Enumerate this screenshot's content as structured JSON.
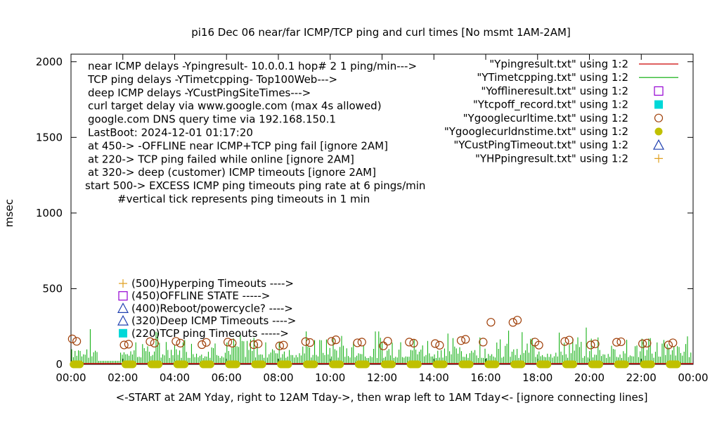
{
  "chart_data": {
    "type": "scatter",
    "title": "pi16 Dec 06  near/far ICMP/TCP ping and curl times [No msmt 1AM-2AM]",
    "xlabel": "<-START at 2AM Yday, right to 12AM Tday->, then wrap left to 1AM Tday<- [ignore connecting lines]",
    "ylabel": "msec",
    "xlim": [
      0,
      24
    ],
    "ylim": [
      0,
      2050
    ],
    "x_ticks": [
      "00:00",
      "02:00",
      "04:00",
      "06:00",
      "08:00",
      "10:00",
      "12:00",
      "14:00",
      "16:00",
      "18:00",
      "20:00",
      "22:00",
      "00:00"
    ],
    "y_ticks": [
      0,
      500,
      1000,
      1500,
      2000
    ],
    "info_lines": [
      "near ICMP delays -Ypingresult- 10.0.0.1 hop# 2 1 ping/min--->",
      "TCP ping delays -YTimetcpping- Top100Web--->",
      "deep ICMP delays -YCustPingSiteTimes--->",
      "curl target delay via www.google.com (max 4s allowed)",
      "google.com DNS query time via 192.168.150.1",
      "LastBoot: 2024-12-01 01:17:20",
      "at 450-> -OFFLINE near ICMP+TCP ping fail [ignore 2AM]",
      "at 220-> TCP ping failed while online [ignore 2AM]",
      "at 320-> deep (customer) ICMP timeouts [ignore 2AM]",
      "start 500-> EXCESS ICMP ping timeouts ping rate at 6 pings/min",
      "#vertical tick represents ping timeouts in 1 min"
    ],
    "legend": [
      {
        "label": "\"Ypingresult.txt\" using 1:2",
        "color": "#cc0000",
        "marker": "line"
      },
      {
        "label": "\"YTimetcpping.txt\" using 1:2",
        "color": "#00aa00",
        "marker": "line"
      },
      {
        "label": "\"Yofflineresult.txt\" using 1:2",
        "color": "#9400d3",
        "marker": "open-square"
      },
      {
        "label": "\"Ytcpoff_record.txt\" using 1:2",
        "color": "#00d8d8",
        "marker": "filled-square"
      },
      {
        "label": "\"Ygooglecurltime.txt\" using 1:2",
        "color": "#a0400a",
        "marker": "open-circle"
      },
      {
        "label": "\"Ygooglecurldnstime.txt\" using 1:2",
        "color": "#c0c000",
        "marker": "filled-circle"
      },
      {
        "label": "\"YCustPingTimeout.txt\" using 1:2",
        "color": "#2040b0",
        "marker": "open-triangle"
      },
      {
        "label": "\"YHPpingresult.txt\" using 1:2",
        "color": "#e0a020",
        "marker": "plus"
      }
    ],
    "key_lines": [
      {
        "label": "(500)Hyperping Timeouts ---->",
        "marker": "plus",
        "color": "#e0a020"
      },
      {
        "label": "(450)OFFLINE STATE ----->",
        "marker": "open-square",
        "color": "#9400d3"
      },
      {
        "label": "(400)Reboot/powercycle? ---->",
        "marker": "open-triangle",
        "color": "#2040b0"
      },
      {
        "label": "(320)Deep ICMP Timeouts ---->",
        "marker": "open-triangle",
        "color": "#2040b0"
      },
      {
        "label": "(220)TCP ping Timeouts ----->",
        "marker": "filled-square",
        "color": "#00d8d8"
      }
    ],
    "series": [
      {
        "name": "\"Ygooglecurltime.txt\" using 1:2",
        "x": [
          0.05,
          0.22,
          2.05,
          2.22,
          3.05,
          3.22,
          4.05,
          4.22,
          5.05,
          5.22,
          6.05,
          6.22,
          7.05,
          7.22,
          8.05,
          8.2,
          9.05,
          9.22,
          10.05,
          10.22,
          11.05,
          11.22,
          12.05,
          12.22,
          13.05,
          13.22,
          14.05,
          14.22,
          15.05,
          15.22,
          15.9,
          16.2,
          17.05,
          17.22,
          17.9,
          18.05,
          19.05,
          19.22,
          20.05,
          20.22,
          21.05,
          21.22,
          22.05,
          22.22,
          23.05,
          23.22
        ],
        "y": [
          168,
          152,
          128,
          133,
          150,
          140,
          152,
          140,
          130,
          145,
          147,
          140,
          130,
          136,
          122,
          127,
          150,
          144,
          152,
          162,
          142,
          147,
          122,
          153,
          147,
          140,
          137,
          126,
          157,
          165,
          147,
          278,
          277,
          292,
          147,
          127,
          151,
          160,
          128,
          135,
          146,
          149,
          136,
          140,
          128,
          142
        ]
      },
      {
        "name": "\"Ygooglecurldnstime.txt\" using 1:2",
        "x_ranges": [
          [
            0.1,
            0.35
          ],
          [
            2.1,
            2.4
          ],
          [
            3.1,
            3.4
          ],
          [
            4.1,
            4.4
          ],
          [
            5.1,
            5.4
          ],
          [
            6.1,
            6.4
          ],
          [
            7.1,
            7.4
          ],
          [
            8.1,
            8.4
          ],
          [
            9.1,
            9.4
          ],
          [
            10.1,
            10.4
          ],
          [
            11.1,
            11.4
          ],
          [
            12.1,
            12.4
          ],
          [
            13.1,
            13.4
          ],
          [
            14.1,
            14.4
          ],
          [
            15.1,
            15.4
          ],
          [
            16.1,
            16.4
          ],
          [
            17.1,
            17.4
          ],
          [
            18.1,
            18.4
          ],
          [
            19.1,
            19.4
          ],
          [
            20.1,
            20.4
          ],
          [
            21.1,
            21.4
          ],
          [
            22.1,
            22.4
          ],
          [
            23.1,
            23.4
          ]
        ],
        "y": 0
      }
    ],
    "grid": false,
    "legend_position": "top-right"
  }
}
